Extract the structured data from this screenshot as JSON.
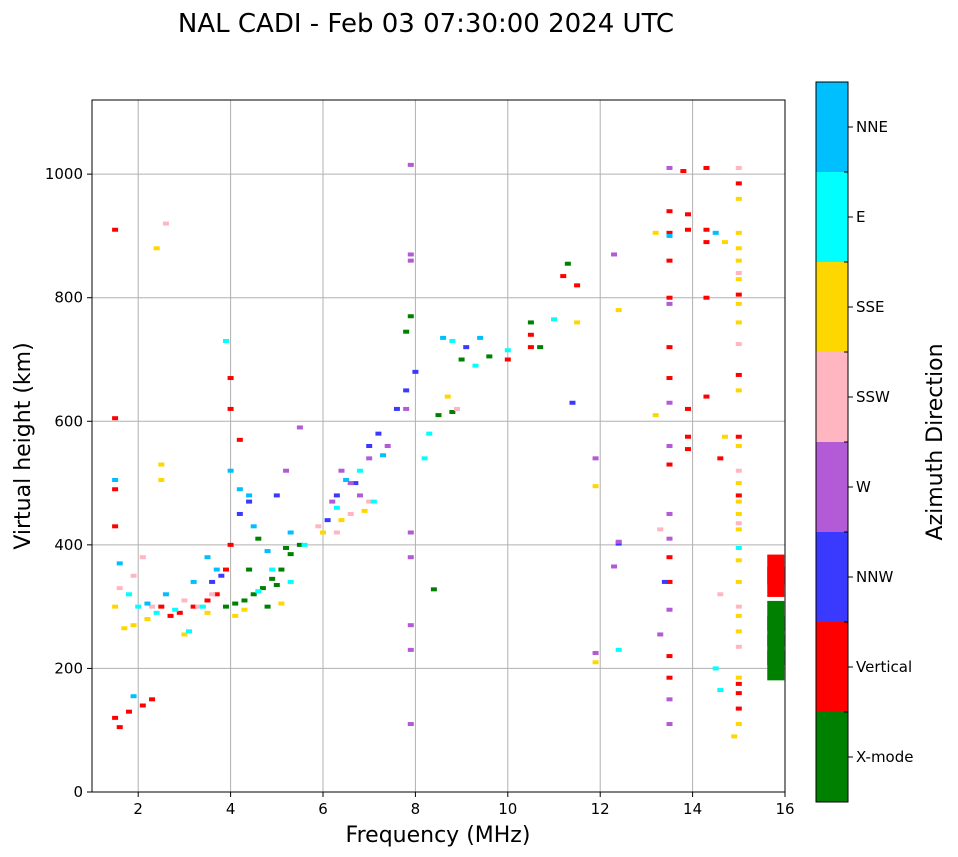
{
  "chart_data": {
    "type": "scatter",
    "title": "NAL CADI - Feb 03 07:30:00 2024 UTC",
    "xlabel": "Frequency (MHz)",
    "ylabel": "Virtual height (km)",
    "xlim": [
      1,
      16
    ],
    "ylim": [
      0,
      1120
    ],
    "xticks": [
      2,
      4,
      6,
      8,
      10,
      12,
      14,
      16
    ],
    "yticks": [
      0,
      200,
      400,
      600,
      800,
      1000
    ],
    "grid": true,
    "colorbar": {
      "label": "Azimuth Direction",
      "categories": [
        {
          "name": "X-mode",
          "color": "#008000"
        },
        {
          "name": "Vertical",
          "color": "#ff0000"
        },
        {
          "name": "NNW",
          "color": "#3a3aff"
        },
        {
          "name": "W",
          "color": "#b35ad6"
        },
        {
          "name": "SSW",
          "color": "#ffb6c1"
        },
        {
          "name": "SSE",
          "color": "#ffd700"
        },
        {
          "name": "E",
          "color": "#00ffff"
        },
        {
          "name": "NNE",
          "color": "#00bfff"
        }
      ]
    },
    "series": [
      {
        "name": "X-mode",
        "points": [
          [
            3.9,
            300
          ],
          [
            4.1,
            305
          ],
          [
            4.3,
            310
          ],
          [
            4.5,
            320
          ],
          [
            4.7,
            330
          ],
          [
            4.9,
            345
          ],
          [
            5.1,
            360
          ],
          [
            5.3,
            385
          ],
          [
            5.2,
            395
          ],
          [
            4.6,
            410
          ],
          [
            4.4,
            360
          ],
          [
            4.8,
            300
          ],
          [
            5.0,
            335
          ],
          [
            5.5,
            400
          ],
          [
            8.4,
            328
          ],
          [
            8.5,
            610
          ],
          [
            8.8,
            615
          ],
          [
            9.0,
            700
          ],
          [
            9.6,
            705
          ],
          [
            10.5,
            760
          ],
          [
            10.7,
            720
          ],
          [
            11.3,
            855
          ],
          [
            15.8,
            205
          ],
          [
            15.8,
            230
          ],
          [
            15.8,
            260
          ],
          [
            15.8,
            285
          ],
          [
            7.9,
            770
          ],
          [
            7.8,
            745
          ]
        ]
      },
      {
        "name": "Vertical",
        "points": [
          [
            1.5,
            910
          ],
          [
            1.5,
            605
          ],
          [
            1.5,
            490
          ],
          [
            1.5,
            430
          ],
          [
            1.5,
            120
          ],
          [
            1.6,
            105
          ],
          [
            1.8,
            130
          ],
          [
            2.1,
            140
          ],
          [
            2.3,
            150
          ],
          [
            2.5,
            300
          ],
          [
            2.7,
            285
          ],
          [
            2.9,
            290
          ],
          [
            3.2,
            300
          ],
          [
            3.5,
            310
          ],
          [
            3.7,
            320
          ],
          [
            3.9,
            360
          ],
          [
            4.0,
            400
          ],
          [
            4.0,
            670
          ],
          [
            4.0,
            620
          ],
          [
            4.2,
            570
          ],
          [
            10.0,
            700
          ],
          [
            10.5,
            720
          ],
          [
            10.5,
            740
          ],
          [
            11.2,
            835
          ],
          [
            11.5,
            820
          ],
          [
            13.8,
            1005
          ],
          [
            13.5,
            940
          ],
          [
            13.5,
            905
          ],
          [
            13.5,
            860
          ],
          [
            13.5,
            800
          ],
          [
            13.5,
            720
          ],
          [
            13.5,
            670
          ],
          [
            13.5,
            530
          ],
          [
            13.5,
            380
          ],
          [
            13.5,
            340
          ],
          [
            13.5,
            220
          ],
          [
            13.5,
            185
          ],
          [
            13.9,
            935
          ],
          [
            13.9,
            910
          ],
          [
            13.9,
            620
          ],
          [
            13.9,
            575
          ],
          [
            13.9,
            555
          ],
          [
            14.3,
            1010
          ],
          [
            14.3,
            910
          ],
          [
            14.3,
            890
          ],
          [
            14.3,
            800
          ],
          [
            14.3,
            640
          ],
          [
            14.6,
            540
          ],
          [
            15.0,
            985
          ],
          [
            15.0,
            805
          ],
          [
            15.0,
            675
          ],
          [
            15.0,
            575
          ],
          [
            15.0,
            480
          ],
          [
            15.0,
            175
          ],
          [
            15.0,
            160
          ],
          [
            15.0,
            135
          ],
          [
            15.8,
            340
          ],
          [
            15.8,
            360
          ]
        ]
      },
      {
        "name": "NNW",
        "points": [
          [
            3.6,
            340
          ],
          [
            3.8,
            350
          ],
          [
            4.2,
            450
          ],
          [
            4.4,
            470
          ],
          [
            5.0,
            480
          ],
          [
            6.1,
            440
          ],
          [
            6.3,
            480
          ],
          [
            6.7,
            500
          ],
          [
            7.0,
            560
          ],
          [
            7.2,
            580
          ],
          [
            7.6,
            620
          ],
          [
            7.8,
            650
          ],
          [
            8.0,
            680
          ],
          [
            9.1,
            720
          ],
          [
            11.4,
            630
          ],
          [
            13.4,
            340
          ],
          [
            12.4,
            402
          ]
        ]
      },
      {
        "name": "W",
        "points": [
          [
            6.2,
            470
          ],
          [
            6.4,
            520
          ],
          [
            6.6,
            500
          ],
          [
            6.8,
            480
          ],
          [
            7.0,
            540
          ],
          [
            7.4,
            560
          ],
          [
            7.8,
            620
          ],
          [
            7.9,
            1015
          ],
          [
            7.9,
            870
          ],
          [
            7.9,
            860
          ],
          [
            7.9,
            420
          ],
          [
            7.9,
            380
          ],
          [
            7.9,
            270
          ],
          [
            7.9,
            230
          ],
          [
            7.9,
            110
          ],
          [
            12.3,
            870
          ],
          [
            12.4,
            405
          ],
          [
            12.3,
            365
          ],
          [
            11.9,
            540
          ],
          [
            11.9,
            225
          ],
          [
            13.5,
            1010
          ],
          [
            13.5,
            790
          ],
          [
            13.5,
            630
          ],
          [
            13.5,
            560
          ],
          [
            13.5,
            450
          ],
          [
            13.5,
            410
          ],
          [
            13.5,
            295
          ],
          [
            13.5,
            150
          ],
          [
            13.5,
            110
          ],
          [
            13.3,
            255
          ],
          [
            5.5,
            590
          ],
          [
            5.2,
            520
          ]
        ]
      },
      {
        "name": "SSW",
        "points": [
          [
            1.6,
            330
          ],
          [
            1.9,
            350
          ],
          [
            2.1,
            380
          ],
          [
            2.3,
            300
          ],
          [
            2.6,
            920
          ],
          [
            3.0,
            310
          ],
          [
            3.3,
            300
          ],
          [
            3.6,
            320
          ],
          [
            5.9,
            430
          ],
          [
            6.3,
            420
          ],
          [
            6.6,
            450
          ],
          [
            7.0,
            470
          ],
          [
            8.9,
            620
          ],
          [
            13.3,
            425
          ],
          [
            14.6,
            320
          ],
          [
            15.0,
            1010
          ],
          [
            15.0,
            840
          ],
          [
            15.0,
            725
          ],
          [
            15.0,
            520
          ],
          [
            15.0,
            435
          ],
          [
            15.0,
            300
          ],
          [
            15.0,
            235
          ]
        ]
      },
      {
        "name": "SSE",
        "points": [
          [
            1.5,
            300
          ],
          [
            1.7,
            265
          ],
          [
            1.9,
            270
          ],
          [
            2.2,
            280
          ],
          [
            2.4,
            880
          ],
          [
            2.5,
            530
          ],
          [
            2.5,
            505
          ],
          [
            3.0,
            255
          ],
          [
            3.5,
            290
          ],
          [
            4.1,
            285
          ],
          [
            4.3,
            295
          ],
          [
            5.1,
            305
          ],
          [
            6.0,
            420
          ],
          [
            6.4,
            440
          ],
          [
            6.9,
            455
          ],
          [
            8.7,
            640
          ],
          [
            11.5,
            760
          ],
          [
            11.9,
            495
          ],
          [
            11.9,
            210
          ],
          [
            12.4,
            780
          ],
          [
            13.2,
            905
          ],
          [
            13.2,
            610
          ],
          [
            14.7,
            890
          ],
          [
            14.7,
            575
          ],
          [
            14.9,
            90
          ],
          [
            15.0,
            960
          ],
          [
            15.0,
            905
          ],
          [
            15.0,
            880
          ],
          [
            15.0,
            860
          ],
          [
            15.0,
            830
          ],
          [
            15.0,
            790
          ],
          [
            15.0,
            760
          ],
          [
            15.0,
            650
          ],
          [
            15.0,
            560
          ],
          [
            15.0,
            500
          ],
          [
            15.0,
            470
          ],
          [
            15.0,
            450
          ],
          [
            15.0,
            425
          ],
          [
            15.0,
            375
          ],
          [
            15.0,
            340
          ],
          [
            15.0,
            285
          ],
          [
            15.0,
            260
          ],
          [
            15.0,
            185
          ],
          [
            15.0,
            110
          ]
        ]
      },
      {
        "name": "E",
        "points": [
          [
            1.8,
            320
          ],
          [
            2.0,
            300
          ],
          [
            2.4,
            290
          ],
          [
            2.8,
            295
          ],
          [
            3.1,
            260
          ],
          [
            3.4,
            300
          ],
          [
            3.9,
            730
          ],
          [
            4.6,
            325
          ],
          [
            4.9,
            360
          ],
          [
            5.3,
            340
          ],
          [
            5.6,
            400
          ],
          [
            6.3,
            460
          ],
          [
            6.8,
            520
          ],
          [
            7.1,
            470
          ],
          [
            8.3,
            580
          ],
          [
            8.2,
            540
          ],
          [
            8.8,
            730
          ],
          [
            9.3,
            690
          ],
          [
            10.0,
            715
          ],
          [
            11.0,
            765
          ],
          [
            12.4,
            230
          ],
          [
            14.5,
            200
          ],
          [
            14.6,
            165
          ],
          [
            15.0,
            395
          ]
        ]
      },
      {
        "name": "NNE",
        "points": [
          [
            1.5,
            505
          ],
          [
            1.6,
            370
          ],
          [
            1.9,
            155
          ],
          [
            2.2,
            305
          ],
          [
            2.6,
            320
          ],
          [
            3.2,
            340
          ],
          [
            3.5,
            380
          ],
          [
            3.7,
            360
          ],
          [
            4.0,
            520
          ],
          [
            4.2,
            490
          ],
          [
            4.4,
            480
          ],
          [
            4.5,
            430
          ],
          [
            4.8,
            390
          ],
          [
            5.3,
            420
          ],
          [
            6.5,
            505
          ],
          [
            7.3,
            545
          ],
          [
            8.6,
            735
          ],
          [
            9.4,
            735
          ],
          [
            13.5,
            900
          ],
          [
            14.5,
            905
          ]
        ]
      }
    ]
  }
}
